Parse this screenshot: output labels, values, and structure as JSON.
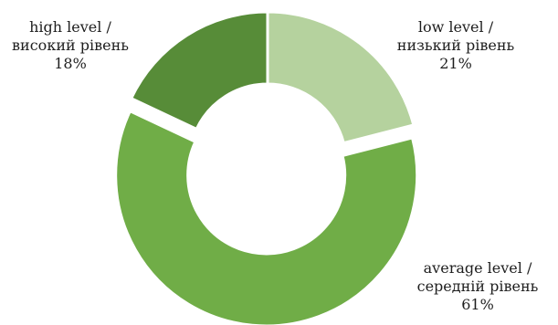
{
  "chart_data": {
    "type": "pie",
    "donut": true,
    "legend": "none",
    "slices": [
      {
        "key": "low",
        "value": 21,
        "label_en": "low level /",
        "label_uk": "низький рівень",
        "pct": "21%",
        "color": "#b5d29e",
        "exploded": false
      },
      {
        "key": "average",
        "value": 61,
        "label_en": "average level  /",
        "label_uk": "середній рівень",
        "pct": "61%",
        "color": "#70ad47",
        "exploded": true
      },
      {
        "key": "high",
        "value": 18,
        "label_en": "high level  /",
        "label_uk": "високий рівень",
        "pct": "18%",
        "color": "#578c38",
        "exploded": false
      }
    ]
  }
}
